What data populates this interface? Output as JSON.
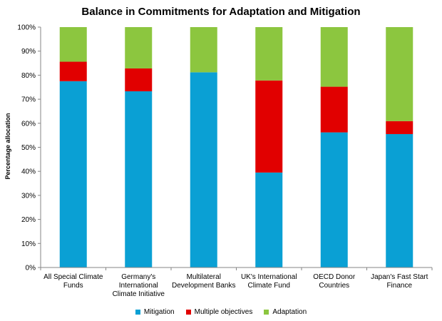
{
  "chart_data": {
    "type": "bar",
    "stacked": true,
    "title": "Balance in Commitments for Adaptation and Mitigation",
    "ylabel": "Percentage allocation",
    "xlabel": "",
    "ylim": [
      0,
      100
    ],
    "yticks": [
      "0%",
      "10%",
      "20%",
      "30%",
      "40%",
      "50%",
      "60%",
      "70%",
      "80%",
      "90%",
      "100%"
    ],
    "grid": false,
    "legend_position": "bottom",
    "categories": [
      [
        "All Special Climate",
        "Funds"
      ],
      [
        "Germany's",
        "International",
        "Climate Initiative"
      ],
      [
        "Multilateral",
        "Development Banks"
      ],
      [
        "UK's International",
        "Climate Fund"
      ],
      [
        "OECD Donor",
        "Countries"
      ],
      [
        "Japan's Fast Start",
        "Finance"
      ]
    ],
    "series": [
      {
        "name": "Mitigation",
        "color": "#0aa0d4",
        "values": [
          77.5,
          73.3,
          81.2,
          39.5,
          56.2,
          55.5
        ]
      },
      {
        "name": "Multiple objectives",
        "color": "#e10000",
        "values": [
          8.1,
          9.5,
          0,
          38.3,
          19.0,
          5.4
        ]
      },
      {
        "name": "Adaptation",
        "color": "#8cc63f",
        "values": [
          14.4,
          17.2,
          18.8,
          22.2,
          24.8,
          39.1
        ]
      }
    ]
  }
}
